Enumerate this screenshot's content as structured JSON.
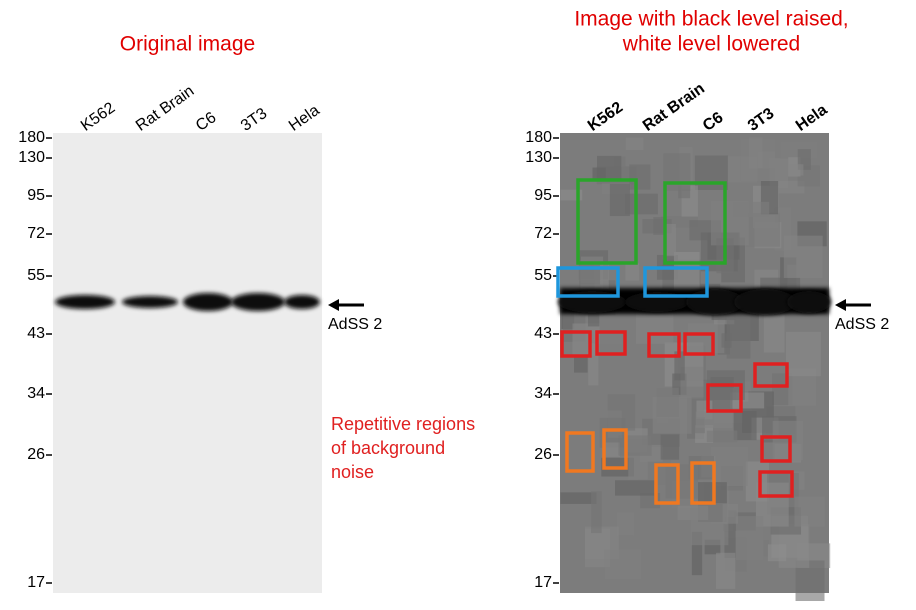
{
  "panels": [
    {
      "title": [
        "Original image"
      ],
      "lanes": [
        "K562",
        "Rat Brain",
        "C6",
        "3T3",
        "Hela"
      ],
      "markers": [
        "180",
        "130",
        "95",
        "72",
        "55",
        "43",
        "34",
        "26",
        "17"
      ],
      "band_label": "AdSS 2"
    },
    {
      "title": [
        "Image with black level raised,",
        "white level lowered"
      ],
      "lanes": [
        "K562",
        "Rat Brain",
        "C6",
        "3T3",
        "Hela"
      ],
      "markers": [
        "180",
        "130",
        "95",
        "72",
        "55",
        "43",
        "34",
        "26",
        "17"
      ],
      "band_label": "AdSS 2"
    }
  ],
  "annotation": [
    "Repetitive regions",
    "of background",
    "noise"
  ]
}
